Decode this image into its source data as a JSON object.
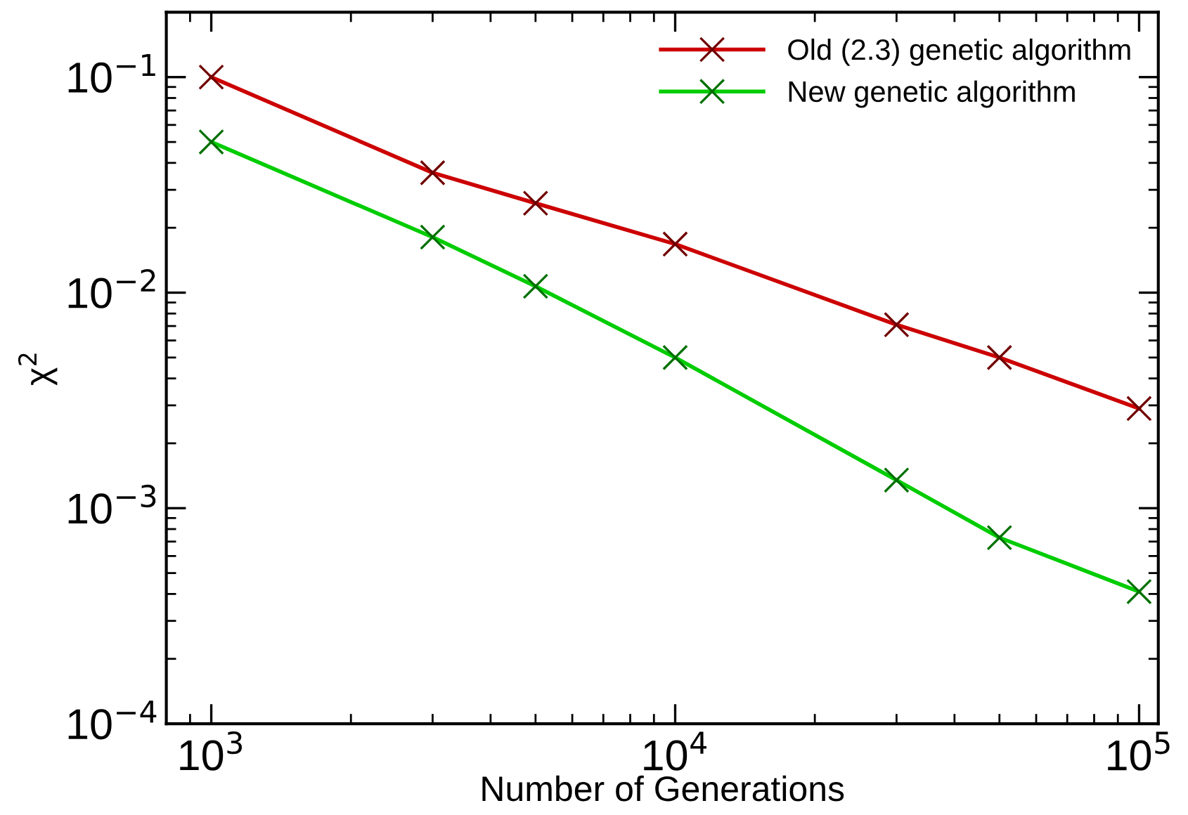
{
  "chart_data": {
    "type": "line",
    "xlabel": "Number of Generations",
    "ylabel": "χ$^{2}$",
    "x": [
      1000,
      3000,
      5000,
      10000,
      30000,
      50000,
      100000
    ],
    "series": [
      {
        "name": "Old (2.3) genetic algorithm",
        "color": "#cc0000",
        "values": [
          0.1,
          0.036,
          0.026,
          0.0168,
          0.0071,
          0.005,
          0.0029
        ]
      },
      {
        "name": "New genetic algorithm",
        "color": "#00cc00",
        "values": [
          0.05,
          0.0181,
          0.0107,
          0.005,
          0.00135,
          0.00073,
          0.00041
        ]
      }
    ],
    "log": "xy",
    "xlim": [
      800,
      110000
    ],
    "ylim": [
      0.0001,
      0.2
    ],
    "xticks": [
      {
        "value": 1000,
        "label": "10$^{3}$"
      },
      {
        "value": 10000,
        "label": "10$^{4}$"
      },
      {
        "value": 100000,
        "label": "10$^{5}$"
      }
    ],
    "yticks": [
      {
        "value": 0.0001,
        "label": "10$^{−4}$"
      },
      {
        "value": 0.001,
        "label": "10$^{−3}$"
      },
      {
        "value": 0.01,
        "label": "10$^{−2}$"
      },
      {
        "value": 0.1,
        "label": "10$^{−1}$"
      }
    ],
    "marker": "cross",
    "line_style": "solid",
    "legend": "top right",
    "grid": false
  }
}
